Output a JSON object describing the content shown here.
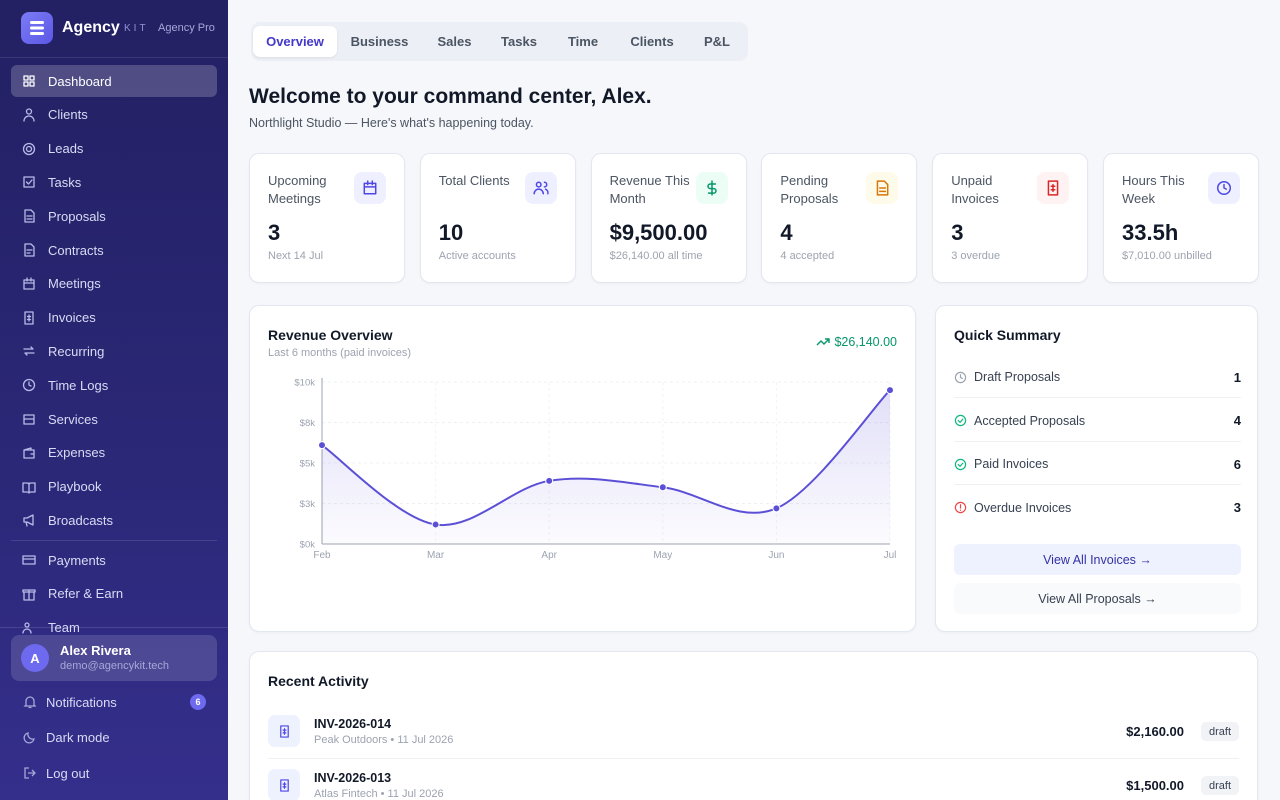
{
  "brand": {
    "name": "Agency",
    "suffix": "KIT",
    "plan": "Agency Pro"
  },
  "nav": {
    "items": [
      "Dashboard",
      "Clients",
      "Leads",
      "Tasks",
      "Proposals",
      "Contracts",
      "Meetings",
      "Invoices",
      "Recurring",
      "Time Logs",
      "Services",
      "Expenses",
      "Playbook",
      "Broadcasts"
    ],
    "secondary": [
      "Payments",
      "Refer & Earn",
      "Team"
    ]
  },
  "user": {
    "initial": "A",
    "name": "Alex Rivera",
    "email": "demo@agencykit.tech"
  },
  "footer_nav": {
    "notifications": "Notifications",
    "notifications_count": "6",
    "dark_mode": "Dark mode",
    "log_out": "Log out"
  },
  "tabs": [
    "Overview",
    "Business",
    "Sales",
    "Tasks",
    "Time",
    "Clients",
    "P&L"
  ],
  "header": {
    "title": "Welcome to your command center, Alex.",
    "subtitle": "Northlight Studio — Here's what's happening today."
  },
  "stats": [
    {
      "label": "Upcoming Meetings",
      "value": "3",
      "sub": "Next 14 Jul"
    },
    {
      "label": "Total Clients",
      "value": "10",
      "sub": "Active accounts"
    },
    {
      "label": "Revenue This Month",
      "value": "$9,500.00",
      "sub": "$26,140.00 all time"
    },
    {
      "label": "Pending Proposals",
      "value": "4",
      "sub": "4 accepted"
    },
    {
      "label": "Unpaid Invoices",
      "value": "3",
      "sub": "3 overdue"
    },
    {
      "label": "Hours This Week",
      "value": "33.5h",
      "sub": "$7,010.00 unbilled"
    }
  ],
  "chart_data": {
    "type": "line",
    "title": "Revenue Overview",
    "subtitle": "Last 6 months (paid invoices)",
    "total": "$26,140.00",
    "categories": [
      "Feb",
      "Mar",
      "Apr",
      "May",
      "Jun",
      "Jul"
    ],
    "values": [
      6100,
      1200,
      3900,
      3500,
      2200,
      9500
    ],
    "color": "#5b4fd6",
    "ylim": [
      0,
      10000
    ],
    "yticks": [
      {
        "value": 0,
        "label": "$0k"
      },
      {
        "value": 2500,
        "label": "$3k"
      },
      {
        "value": 5000,
        "label": "$5k"
      },
      {
        "value": 7500,
        "label": "$8k"
      },
      {
        "value": 10000,
        "label": "$10k"
      }
    ],
    "grid": true
  },
  "summary": {
    "title": "Quick Summary",
    "items": [
      {
        "label": "Draft Proposals",
        "count": "1"
      },
      {
        "label": "Accepted Proposals",
        "count": "4"
      },
      {
        "label": "Paid Invoices",
        "count": "6"
      },
      {
        "label": "Overdue Invoices",
        "count": "3"
      }
    ],
    "buttons": [
      "View All Invoices →",
      "View All Proposals →"
    ]
  },
  "activity": {
    "title": "Recent Activity",
    "rows": [
      {
        "id": "INV-2026-014",
        "meta": "Peak Outdoors • 11 Jul 2026",
        "amount": "$2,160.00",
        "status": "draft"
      },
      {
        "id": "INV-2026-013",
        "meta": "Atlas Fintech • 11 Jul 2026",
        "amount": "$1,500.00",
        "status": "draft"
      }
    ]
  }
}
